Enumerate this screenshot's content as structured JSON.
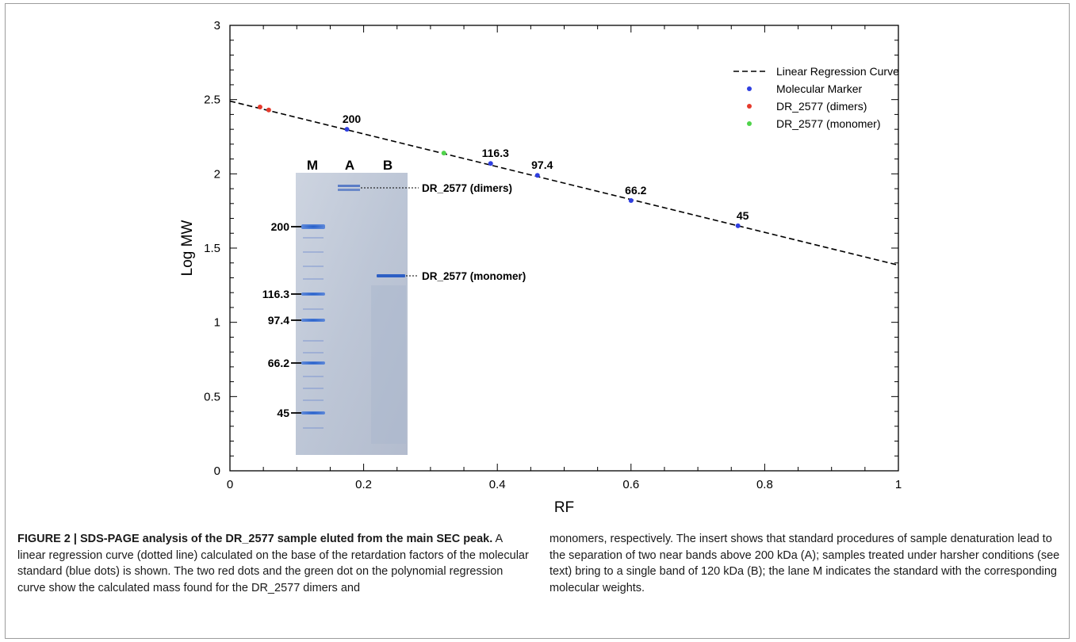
{
  "figure": {
    "caption_label": "FIGURE 2 | SDS-PAGE analysis of the DR_2577 sample eluted from the main SEC peak.",
    "caption_text_left": " A linear regression curve (dotted line) calculated on the base of the retardation factors of the molecular standard (blue dots) is shown. The two red dots and the green dot on the polynomial regression curve show the calculated mass found for the DR_2577 dimers and",
    "caption_text_right": "monomers, respectively. The insert shows that standard procedures of sample denaturation lead to the separation of two near bands above 200 kDa (A); samples treated under harsher conditions (see text) bring to a single band of 120 kDa (B); the lane M indicates the standard with the corresponding molecular weights."
  },
  "chart_data": {
    "type": "scatter",
    "xlabel": "RF",
    "ylabel": "Log MW",
    "xlim": [
      0,
      1
    ],
    "ylim": [
      0,
      3
    ],
    "x_ticks": [
      "0",
      "0.2",
      "0.4",
      "0.6",
      "0.8",
      "1"
    ],
    "y_ticks": [
      "0",
      "0.5",
      "1",
      "1.5",
      "2",
      "2.5",
      "3"
    ],
    "regression": {
      "name": "Linear Regression Curve",
      "intercept": 2.49,
      "slope": -1.105
    },
    "series": [
      {
        "name": "Molecular Marker",
        "color": "#2f3fe0",
        "points": [
          {
            "x": 0.175,
            "y": 2.3,
            "label": "200"
          },
          {
            "x": 0.39,
            "y": 2.07,
            "label": "116.3"
          },
          {
            "x": 0.46,
            "y": 1.99,
            "label": "97.4"
          },
          {
            "x": 0.6,
            "y": 1.82,
            "label": "66.2"
          },
          {
            "x": 0.76,
            "y": 1.65,
            "label": "45"
          }
        ]
      },
      {
        "name": "DR_2577 (dimers)",
        "color": "#e53a2c",
        "points": [
          {
            "x": 0.045,
            "y": 2.45
          },
          {
            "x": 0.058,
            "y": 2.43
          }
        ]
      },
      {
        "name": "DR_2577 (monomer)",
        "color": "#4fd34a",
        "points": [
          {
            "x": 0.32,
            "y": 2.14
          }
        ]
      }
    ],
    "legend_position": "top-right",
    "grid": false
  },
  "gel": {
    "lane_labels": [
      "M",
      "A",
      "B"
    ],
    "marker_labels": [
      "200",
      "116.3",
      "97.4",
      "66.2",
      "45"
    ],
    "band_labels": [
      "DR_2577 (dimers)",
      "DR_2577 (monomer)"
    ]
  }
}
